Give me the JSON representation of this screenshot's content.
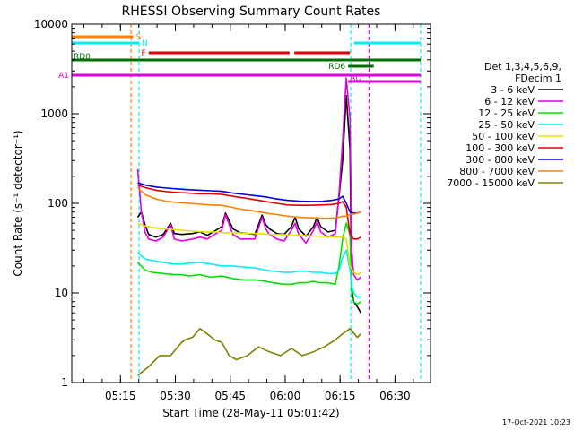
{
  "chart_data": {
    "type": "line",
    "title": "RHESSI Observing Summary Count Rates",
    "xlabel": "Start Time (28-May-11 05:01:42)",
    "ylabel": "Count Rate (s⁻¹ detector⁻¹)",
    "yscale": "log",
    "ylim": [
      1,
      10000
    ],
    "xlim_minutes": [
      0,
      98
    ],
    "xticks": [
      {
        "label": "05:15",
        "min": 13.3
      },
      {
        "label": "05:30",
        "min": 28.3
      },
      {
        "label": "05:45",
        "min": 43.3
      },
      {
        "label": "06:00",
        "min": 58.3
      },
      {
        "label": "06:15",
        "min": 73.3
      },
      {
        "label": "06:30",
        "min": 88.3
      }
    ],
    "yticks": [
      {
        "label": "1",
        "value": 1
      },
      {
        "label": "10",
        "value": 10
      },
      {
        "label": "100",
        "value": 100
      },
      {
        "label": "1000",
        "value": 1000
      },
      {
        "label": "10000",
        "value": 10000
      }
    ],
    "legend_title": [
      "Det 1,3,4,5,6,9,",
      "FDecim 1"
    ],
    "series": [
      {
        "name": "3 - 6 keV",
        "color": "#000000",
        "points": [
          [
            18,
            70
          ],
          [
            19,
            80
          ],
          [
            20,
            58
          ],
          [
            21,
            45
          ],
          [
            23,
            42
          ],
          [
            25,
            45
          ],
          [
            27,
            60
          ],
          [
            28,
            46
          ],
          [
            30,
            45
          ],
          [
            33,
            46
          ],
          [
            35,
            48
          ],
          [
            37,
            44
          ],
          [
            39,
            49
          ],
          [
            41,
            55
          ],
          [
            42,
            78
          ],
          [
            43,
            64
          ],
          [
            44,
            52
          ],
          [
            46,
            47
          ],
          [
            48,
            46
          ],
          [
            50,
            45
          ],
          [
            52,
            74
          ],
          [
            53,
            58
          ],
          [
            54,
            52
          ],
          [
            56,
            46
          ],
          [
            58,
            45
          ],
          [
            60,
            55
          ],
          [
            61,
            70
          ],
          [
            62,
            52
          ],
          [
            64,
            43
          ],
          [
            66,
            55
          ],
          [
            67,
            70
          ],
          [
            68,
            55
          ],
          [
            70,
            48
          ],
          [
            72,
            50
          ],
          [
            73,
            120
          ],
          [
            74,
            300
          ],
          [
            75,
            1600
          ],
          [
            76,
            400
          ],
          [
            76.5,
            11
          ],
          [
            77,
            8
          ],
          [
            78,
            7
          ],
          [
            79,
            6
          ]
        ]
      },
      {
        "name": "6 - 12 keV",
        "color": "#e000e0",
        "points": [
          [
            18,
            240
          ],
          [
            19,
            80
          ],
          [
            20,
            48
          ],
          [
            21,
            40
          ],
          [
            23,
            38
          ],
          [
            25,
            42
          ],
          [
            27,
            58
          ],
          [
            28,
            40
          ],
          [
            30,
            38
          ],
          [
            33,
            40
          ],
          [
            35,
            42
          ],
          [
            37,
            40
          ],
          [
            39,
            45
          ],
          [
            41,
            50
          ],
          [
            42,
            75
          ],
          [
            43,
            58
          ],
          [
            44,
            45
          ],
          [
            46,
            40
          ],
          [
            48,
            40
          ],
          [
            50,
            40
          ],
          [
            52,
            70
          ],
          [
            53,
            52
          ],
          [
            54,
            45
          ],
          [
            56,
            40
          ],
          [
            58,
            38
          ],
          [
            60,
            50
          ],
          [
            61,
            60
          ],
          [
            62,
            45
          ],
          [
            64,
            36
          ],
          [
            66,
            50
          ],
          [
            67,
            62
          ],
          [
            68,
            48
          ],
          [
            70,
            42
          ],
          [
            72,
            46
          ],
          [
            73,
            130
          ],
          [
            74,
            500
          ],
          [
            75,
            2500
          ],
          [
            76,
            900
          ],
          [
            76.5,
            30
          ],
          [
            77,
            16
          ],
          [
            78,
            14
          ],
          [
            79,
            15
          ]
        ]
      },
      {
        "name": "12 - 25 keV",
        "color": "#00e000",
        "points": [
          [
            18,
            22
          ],
          [
            20,
            18
          ],
          [
            22,
            17
          ],
          [
            25,
            16.5
          ],
          [
            28,
            16
          ],
          [
            30,
            16
          ],
          [
            32,
            15.5
          ],
          [
            35,
            16
          ],
          [
            38,
            15
          ],
          [
            41,
            15.5
          ],
          [
            44,
            14.5
          ],
          [
            47,
            14
          ],
          [
            50,
            14
          ],
          [
            53,
            13.5
          ],
          [
            55,
            13
          ],
          [
            58,
            12.5
          ],
          [
            60,
            12.5
          ],
          [
            62,
            13
          ],
          [
            64,
            13
          ],
          [
            66,
            13.5
          ],
          [
            68,
            13
          ],
          [
            70,
            13
          ],
          [
            72,
            12.5
          ],
          [
            73,
            20
          ],
          [
            74,
            40
          ],
          [
            75,
            60
          ],
          [
            76,
            45
          ],
          [
            76.5,
            9
          ],
          [
            77,
            8
          ],
          [
            78,
            7.5
          ],
          [
            79,
            8
          ]
        ]
      },
      {
        "name": "25 - 50 keV",
        "color": "#00f0f0",
        "points": [
          [
            18,
            28
          ],
          [
            20,
            24
          ],
          [
            22,
            23
          ],
          [
            25,
            22
          ],
          [
            28,
            21
          ],
          [
            30,
            21
          ],
          [
            32,
            21.5
          ],
          [
            35,
            22
          ],
          [
            38,
            21
          ],
          [
            41,
            20
          ],
          [
            44,
            20
          ],
          [
            47,
            19.5
          ],
          [
            50,
            19
          ],
          [
            53,
            18
          ],
          [
            55,
            17.5
          ],
          [
            58,
            17
          ],
          [
            60,
            17
          ],
          [
            62,
            17.5
          ],
          [
            64,
            17.5
          ],
          [
            66,
            17
          ],
          [
            68,
            17
          ],
          [
            70,
            16.5
          ],
          [
            72,
            16.5
          ],
          [
            73,
            18
          ],
          [
            74,
            25
          ],
          [
            75,
            30
          ],
          [
            76,
            18
          ],
          [
            76.5,
            12
          ],
          [
            77,
            10
          ],
          [
            78,
            9
          ],
          [
            79,
            9
          ]
        ]
      },
      {
        "name": "50 - 100 keV",
        "color": "#e0e000",
        "points": [
          [
            18,
            60
          ],
          [
            20,
            56
          ],
          [
            22,
            54
          ],
          [
            25,
            52
          ],
          [
            28,
            51
          ],
          [
            30,
            50
          ],
          [
            33,
            49
          ],
          [
            36,
            48
          ],
          [
            39,
            48
          ],
          [
            42,
            47
          ],
          [
            45,
            47
          ],
          [
            48,
            46
          ],
          [
            51,
            46
          ],
          [
            54,
            45
          ],
          [
            57,
            45
          ],
          [
            60,
            44
          ],
          [
            63,
            44
          ],
          [
            66,
            43
          ],
          [
            69,
            43
          ],
          [
            72,
            42
          ],
          [
            74,
            42
          ],
          [
            75,
            40
          ],
          [
            76,
            20
          ],
          [
            77,
            17
          ],
          [
            78,
            16
          ],
          [
            79,
            17
          ]
        ]
      },
      {
        "name": "100 - 300 keV",
        "color": "#e00000",
        "points": [
          [
            18,
            160
          ],
          [
            20,
            150
          ],
          [
            23,
            140
          ],
          [
            26,
            135
          ],
          [
            29,
            132
          ],
          [
            32,
            130
          ],
          [
            35,
            128
          ],
          [
            38,
            128
          ],
          [
            41,
            126
          ],
          [
            44,
            120
          ],
          [
            47,
            115
          ],
          [
            50,
            110
          ],
          [
            53,
            105
          ],
          [
            56,
            100
          ],
          [
            59,
            96
          ],
          [
            62,
            95
          ],
          [
            65,
            95
          ],
          [
            68,
            96
          ],
          [
            71,
            97
          ],
          [
            73,
            100
          ],
          [
            74,
            105
          ],
          [
            75,
            90
          ],
          [
            76,
            45
          ],
          [
            77,
            40
          ],
          [
            78,
            40
          ],
          [
            79,
            42
          ]
        ]
      },
      {
        "name": "300 - 800 keV",
        "color": "#0000e0",
        "points": [
          [
            18,
            170
          ],
          [
            20,
            160
          ],
          [
            23,
            152
          ],
          [
            26,
            148
          ],
          [
            29,
            145
          ],
          [
            32,
            142
          ],
          [
            35,
            140
          ],
          [
            38,
            138
          ],
          [
            41,
            136
          ],
          [
            44,
            130
          ],
          [
            47,
            126
          ],
          [
            50,
            122
          ],
          [
            53,
            118
          ],
          [
            56,
            112
          ],
          [
            59,
            108
          ],
          [
            62,
            106
          ],
          [
            65,
            105
          ],
          [
            68,
            105
          ],
          [
            71,
            108
          ],
          [
            73,
            112
          ],
          [
            74,
            120
          ],
          [
            75,
            100
          ],
          [
            76,
            80
          ],
          [
            77,
            78
          ],
          [
            78,
            78
          ],
          [
            79,
            80
          ]
        ]
      },
      {
        "name": "800 - 7000 keV",
        "color": "#ff8000",
        "points": [
          [
            18,
            150
          ],
          [
            20,
            125
          ],
          [
            23,
            112
          ],
          [
            26,
            105
          ],
          [
            29,
            102
          ],
          [
            32,
            100
          ],
          [
            35,
            98
          ],
          [
            38,
            96
          ],
          [
            41,
            95
          ],
          [
            44,
            90
          ],
          [
            47,
            85
          ],
          [
            50,
            82
          ],
          [
            53,
            78
          ],
          [
            56,
            75
          ],
          [
            59,
            72
          ],
          [
            62,
            70
          ],
          [
            65,
            69
          ],
          [
            68,
            68
          ],
          [
            71,
            68
          ],
          [
            73,
            70
          ],
          [
            74,
            72
          ],
          [
            75,
            72
          ],
          [
            76,
            75
          ],
          [
            77,
            76
          ],
          [
            78,
            78
          ],
          [
            79,
            80
          ]
        ]
      },
      {
        "name": "7000 - 15000 keV",
        "color": "#808000",
        "points": [
          [
            18,
            1.2
          ],
          [
            21,
            1.5
          ],
          [
            24,
            2
          ],
          [
            27,
            2
          ],
          [
            30,
            2.8
          ],
          [
            31,
            3
          ],
          [
            33,
            3.2
          ],
          [
            35,
            4
          ],
          [
            37,
            3.5
          ],
          [
            39,
            3
          ],
          [
            41,
            2.8
          ],
          [
            43,
            2
          ],
          [
            45,
            1.8
          ],
          [
            48,
            2
          ],
          [
            51,
            2.5
          ],
          [
            54,
            2.2
          ],
          [
            57,
            2
          ],
          [
            60,
            2.4
          ],
          [
            63,
            2
          ],
          [
            66,
            2.2
          ],
          [
            69,
            2.5
          ],
          [
            72,
            3
          ],
          [
            74,
            3.5
          ],
          [
            76,
            4
          ],
          [
            78,
            3.2
          ],
          [
            79,
            3.5
          ]
        ]
      }
    ],
    "flag_bars": [
      {
        "label": "S",
        "color": "#ff8000",
        "segments": [
          [
            0,
            16.8
          ]
        ]
      },
      {
        "label": "N",
        "color": "#00f0f0",
        "segments": [
          [
            0,
            18.4
          ],
          [
            77.1,
            95.3
          ]
        ]
      },
      {
        "label": "F",
        "color": "#e00000",
        "segments": [
          [
            21,
            59.5
          ],
          [
            60.8,
            76
          ]
        ]
      },
      {
        "label": "RD0",
        "color": "#007000",
        "segments": [
          [
            0,
            95.3
          ]
        ]
      },
      {
        "label": "RD6",
        "color": "#007000",
        "segments": [
          [
            75.5,
            82.5
          ]
        ]
      },
      {
        "label": "A1",
        "color": "#e000e0",
        "segments": [
          [
            0,
            95.3
          ]
        ]
      },
      {
        "label": "AD",
        "color": "#e000e0",
        "segments": [
          [
            75.5,
            95.3
          ]
        ]
      }
    ],
    "vertical_markers": [
      {
        "min": 16.2,
        "color": "#ff8000"
      },
      {
        "min": 18.4,
        "color": "#00f0f0"
      },
      {
        "min": 76.2,
        "color": "#00f0f0"
      },
      {
        "min": 81.2,
        "color": "#e000e0"
      },
      {
        "min": 95.3,
        "color": "#00f0f0"
      }
    ],
    "grid": false,
    "legend_placement": "right"
  },
  "footer": {
    "timestamp": "17-Oct-2021 10:23"
  }
}
